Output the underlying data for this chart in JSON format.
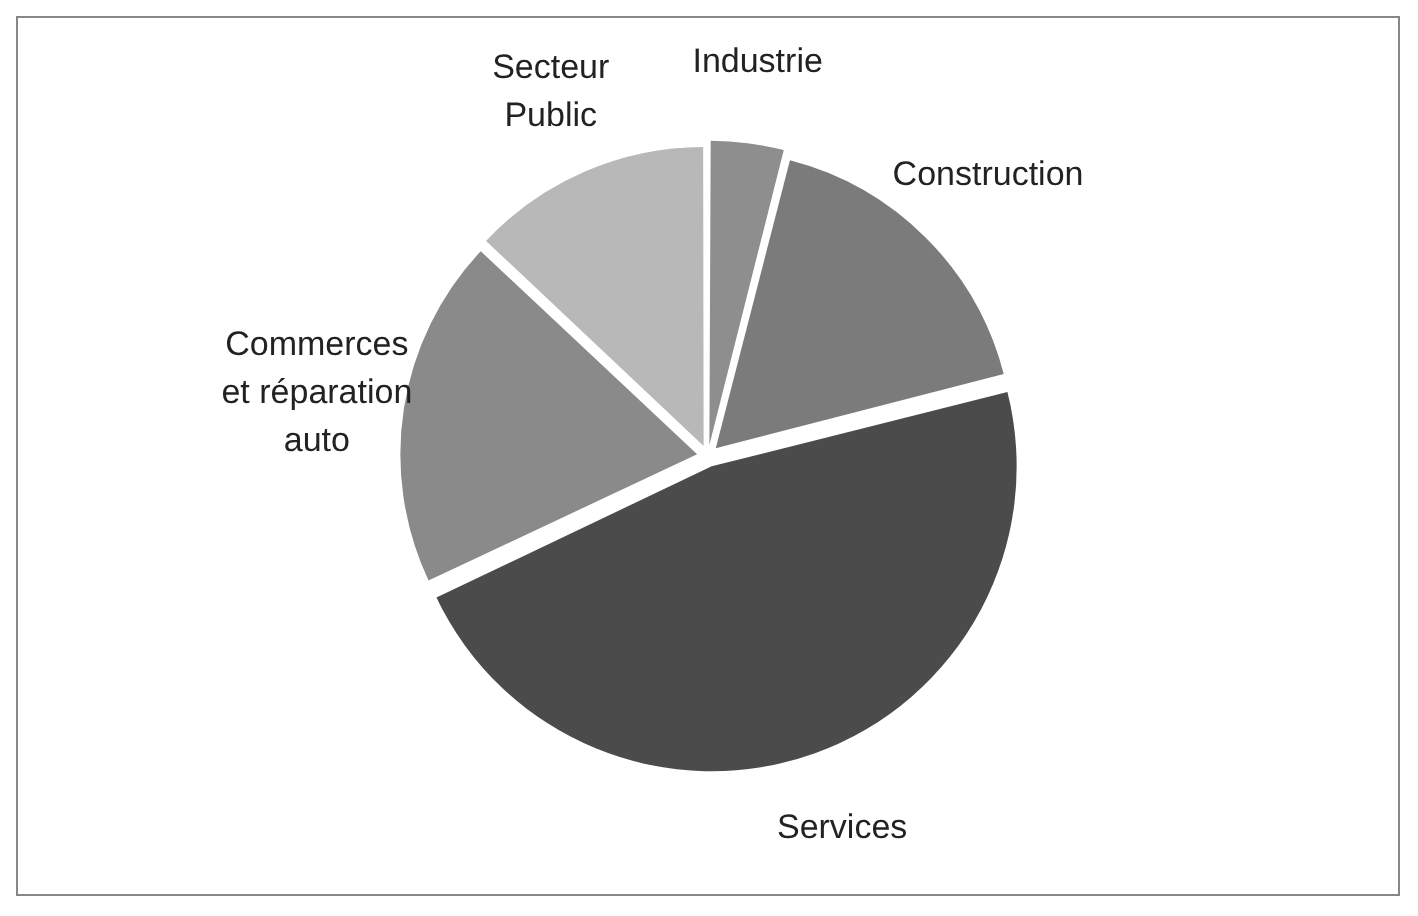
{
  "chart_data": {
    "type": "pie",
    "categories": [
      "Industrie",
      "Construction",
      "Services",
      "Commerces et réparation auto",
      "Secteur Public"
    ],
    "values": [
      4,
      17,
      47,
      19,
      13
    ],
    "colors": [
      "#8e8e8e",
      "#7b7b7b",
      "#4b4b4b",
      "#8a8a8a",
      "#b8b8b8"
    ],
    "legend": false
  }
}
